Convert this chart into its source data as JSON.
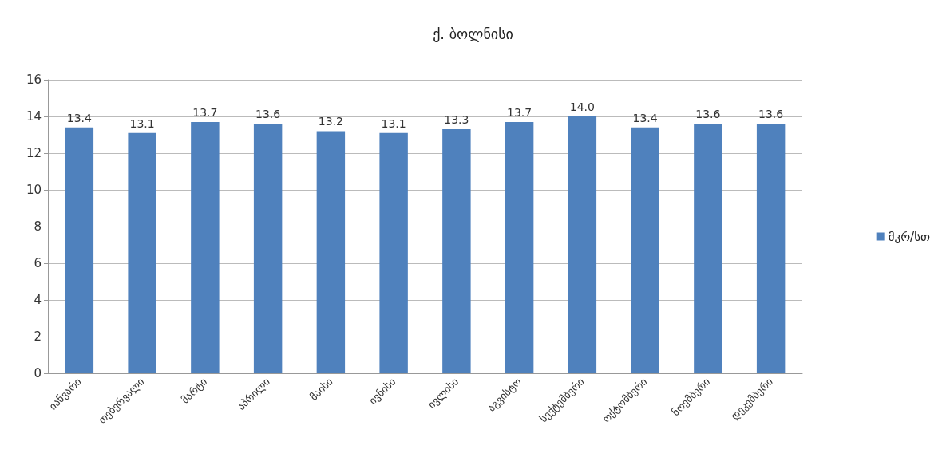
{
  "chart_data": {
    "type": "bar",
    "title": "ქ. ბოლნისი",
    "categories": [
      "იანვარი",
      "თებერვალი",
      "მარტი",
      "აპრილი",
      "მაისი",
      "ივნისი",
      "ივლისი",
      "აგვისტო",
      "სექტემბერი",
      "ოქტომბერი",
      "ნოემბერი",
      "დეკემბერი"
    ],
    "series": [
      {
        "name": "მკრ/სთ",
        "color": "#4f81bd",
        "values": [
          13.4,
          13.1,
          13.7,
          13.6,
          13.2,
          13.1,
          13.3,
          13.7,
          14.0,
          13.4,
          13.6,
          13.6
        ],
        "value_labels": [
          "13.4",
          "13.1",
          "13.7",
          "13.6",
          "13.2",
          "13.1",
          "13.3",
          "13.7",
          "14.0",
          "13.4",
          "13.6",
          "13.6"
        ]
      }
    ],
    "ylim": [
      0,
      16
    ],
    "yticks": [
      0,
      2,
      4,
      6,
      8,
      10,
      12,
      14,
      16
    ],
    "grid": "y",
    "legend": "right"
  }
}
